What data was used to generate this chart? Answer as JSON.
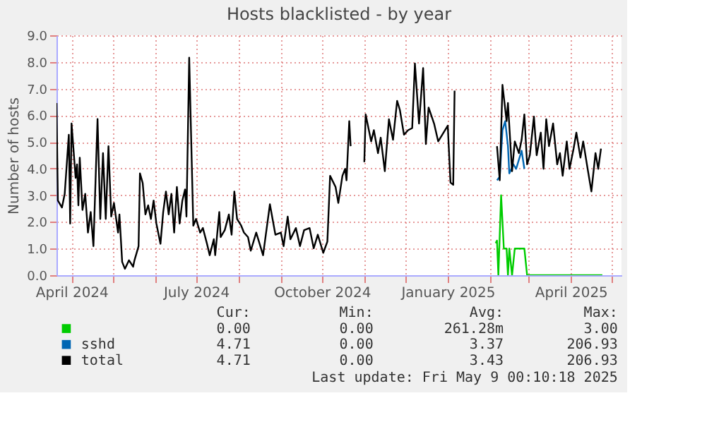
{
  "chart_data": {
    "type": "line",
    "title": "Hosts blacklisted - by year",
    "ylabel": "Number of hosts",
    "xlim": [
      "2024-03-21",
      "2025-05-08"
    ],
    "ylim": [
      0,
      9
    ],
    "yticks": [
      {
        "value": 0,
        "label": "0.0"
      },
      {
        "value": 1,
        "label": "1.0"
      },
      {
        "value": 2,
        "label": "2.0"
      },
      {
        "value": 3,
        "label": "3.0"
      },
      {
        "value": 4,
        "label": "4.0"
      },
      {
        "value": 5,
        "label": "5.0"
      },
      {
        "value": 6,
        "label": "6.0"
      },
      {
        "value": 7,
        "label": "7.0"
      },
      {
        "value": 8,
        "label": "8.0"
      },
      {
        "value": 9,
        "label": "9.0"
      }
    ],
    "xticks": [
      {
        "value": "2024-04-01",
        "label": "April 2024"
      },
      {
        "value": "2024-05-01",
        "label": null
      },
      {
        "value": "2024-06-01",
        "label": null
      },
      {
        "value": "2024-07-01",
        "label": "July 2024"
      },
      {
        "value": "2024-08-01",
        "label": null
      },
      {
        "value": "2024-09-01",
        "label": null
      },
      {
        "value": "2024-10-01",
        "label": "October 2024"
      },
      {
        "value": "2024-11-01",
        "label": null
      },
      {
        "value": "2024-12-01",
        "label": null
      },
      {
        "value": "2025-01-01",
        "label": "January 2025"
      },
      {
        "value": "2025-02-01",
        "label": null
      },
      {
        "value": "2025-03-01",
        "label": null
      },
      {
        "value": "2025-04-01",
        "label": "April 2025"
      },
      {
        "value": "2025-05-01",
        "label": null
      }
    ],
    "grid": true,
    "legend": "bottom",
    "line_style": "solid",
    "marker": "none",
    "series": [
      {
        "color": "#00cc00",
        "x": [
          "2025-02-05",
          "2025-02-06",
          "2025-02-07",
          "2025-02-09",
          "2025-02-11",
          "2025-02-13",
          "2025-02-14",
          "2025-02-15",
          "2025-02-17",
          "2025-02-19",
          "2025-02-26",
          "2025-02-28",
          "2025-04-24"
        ],
        "values": [
          1.2,
          1.3,
          0,
          3.0,
          1.0,
          1.0,
          0,
          1.0,
          0,
          1.0,
          1.0,
          0,
          0
        ]
      },
      {
        "name": "sshd",
        "color": "#0066b3",
        "x": [
          "2025-02-06",
          "2025-02-08",
          "2025-02-10",
          "2025-02-12",
          "2025-02-14",
          "2025-02-15",
          "2025-02-18",
          "2025-02-20",
          "2025-02-22",
          "2025-02-24",
          "2025-02-26"
        ],
        "values": [
          3.56,
          3.69,
          5.44,
          5.78,
          4.84,
          3.82,
          4.16,
          3.99,
          4.33,
          4.67,
          3.99
        ]
      },
      {
        "name": "total",
        "color": "#000000",
        "x": [
          "2024-03-21",
          "2024-03-22",
          "2024-03-25",
          "2024-03-27",
          "2024-03-30",
          "2024-03-31",
          "2024-04-01",
          "2024-04-04",
          "2024-04-05",
          "2024-04-06",
          "2024-04-07",
          "2024-04-09",
          "2024-04-11",
          "2024-04-13",
          "2024-04-15",
          "2024-04-17",
          "2024-04-20",
          "2024-04-22",
          "2024-04-24",
          "2024-04-26",
          "2024-04-28",
          "2024-04-30",
          "2024-05-02",
          "2024-05-05",
          "2024-05-06",
          "2024-05-08",
          "2024-05-10",
          "2024-05-13",
          "2024-05-16",
          "2024-05-17",
          "2024-05-20",
          "2024-05-21",
          "2024-05-23",
          "2024-05-25",
          "2024-05-27",
          "2024-05-29",
          "2024-05-31",
          "2024-06-02",
          "2024-06-05",
          "2024-06-07",
          "2024-06-09",
          "2024-06-11",
          "2024-06-13",
          "2024-06-15",
          "2024-06-17",
          "2024-06-19",
          "2024-06-21",
          "2024-06-23",
          "2024-06-24",
          "2024-06-26",
          "2024-06-29",
          "2024-07-01",
          "2024-07-04",
          "2024-07-06",
          "2024-07-09",
          "2024-07-11",
          "2024-07-14",
          "2024-07-15",
          "2024-07-18",
          "2024-07-19",
          "2024-07-22",
          "2024-07-25",
          "2024-07-27",
          "2024-07-29",
          "2024-07-31",
          "2024-08-03",
          "2024-08-05",
          "2024-08-08",
          "2024-08-10",
          "2024-08-14",
          "2024-08-19",
          "2024-08-24",
          "2024-08-28",
          "2024-09-01",
          "2024-09-03",
          "2024-09-06",
          "2024-09-08",
          "2024-09-12",
          "2024-09-15",
          "2024-09-18",
          "2024-09-22",
          "2024-09-25",
          "2024-09-28",
          "2024-10-02",
          "2024-10-05",
          "2024-10-07",
          "2024-10-11",
          "2024-10-13",
          "2024-10-16",
          "2024-10-18",
          "2024-10-19",
          "2024-10-21",
          "2024-10-22",
          "2024-10-27",
          "2024-11-01",
          "2024-11-02",
          "2024-11-06",
          "2024-11-08",
          "2024-11-11",
          "2024-11-13",
          "2024-11-16",
          "2024-11-19",
          "2024-11-22",
          "2024-11-25",
          "2024-11-27",
          "2024-11-30",
          "2024-12-03",
          "2024-12-06",
          "2024-12-08",
          "2024-12-11",
          "2024-12-14",
          "2024-12-16",
          "2024-12-18",
          "2024-12-22",
          "2024-12-25",
          "2024-12-28",
          "2025-01-01",
          "2025-01-03",
          "2025-01-05",
          "2025-01-06",
          "2025-01-20",
          "2025-02-06",
          "2025-02-08",
          "2025-02-10",
          "2025-02-13",
          "2025-02-14",
          "2025-02-17",
          "2025-02-19",
          "2025-02-22",
          "2025-02-24",
          "2025-02-26",
          "2025-02-28",
          "2025-03-02",
          "2025-03-05",
          "2025-03-07",
          "2025-03-10",
          "2025-03-12",
          "2025-03-14",
          "2025-03-16",
          "2025-03-19",
          "2025-03-22",
          "2025-03-24",
          "2025-03-26",
          "2025-03-29",
          "2025-03-31",
          "2025-04-03",
          "2025-04-05",
          "2025-04-08",
          "2025-04-10",
          "2025-04-13",
          "2025-04-16",
          "2025-04-19",
          "2025-04-21",
          "2025-04-23"
        ],
        "values": [
          6.46,
          2.8,
          2.54,
          3.05,
          5.27,
          1.94,
          5.69,
          3.65,
          4.16,
          2.62,
          4.41,
          2.45,
          3.05,
          1.6,
          2.37,
          1.09,
          5.86,
          2.11,
          4.58,
          2.11,
          4.84,
          2.2,
          2.71,
          1.6,
          2.28,
          0.5,
          0.24,
          0.56,
          0.32,
          0.56,
          1.09,
          3.82,
          3.46,
          2.28,
          2.62,
          2.11,
          2.8,
          1.94,
          1.18,
          2.37,
          3.14,
          2.28,
          3.05,
          1.6,
          3.31,
          1.94,
          2.8,
          3.22,
          2.2,
          8.16,
          1.86,
          2.11,
          1.6,
          1.77,
          1.18,
          0.75,
          1.35,
          0.75,
          2.37,
          1.43,
          1.69,
          2.28,
          1.52,
          3.14,
          2.11,
          1.86,
          1.6,
          1.43,
          0.92,
          1.6,
          0.75,
          2.66,
          1.52,
          1.6,
          1.09,
          2.2,
          1.35,
          1.77,
          1.09,
          1.69,
          1.77,
          1.01,
          1.52,
          0.84,
          1.26,
          3.73,
          3.31,
          2.71,
          3.73,
          3.99,
          3.56,
          5.78,
          4.84,
          null,
          4.24,
          6.03,
          5.02,
          5.44,
          4.58,
          5.16,
          3.9,
          5.85,
          5.08,
          6.54,
          6.2,
          5.27,
          5.44,
          5.52,
          7.94,
          5.69,
          7.77,
          4.92,
          6.29,
          5.69,
          5.02,
          5.27,
          5.61,
          3.48,
          3.39,
          6.92,
          null,
          4.84,
          3.56,
          7.14,
          5.78,
          6.46,
          3.9,
          5.02,
          4.58,
          5.08,
          6.03,
          4.16,
          4.5,
          5.95,
          4.5,
          5.35,
          3.99,
          5.85,
          4.84,
          5.69,
          4.16,
          4.58,
          3.73,
          5.02,
          3.99,
          4.75,
          5.35,
          4.41,
          5.02,
          4.07,
          3.14,
          4.58,
          3.99,
          4.75
        ]
      }
    ],
    "annotations": [
      "Cur:",
      "Min:",
      "Avg:",
      "Max:",
      "0.00",
      "0.00",
      "261.28m",
      "3.00",
      "4.71",
      "0.00",
      "3.37",
      "206.93",
      "4.71",
      "0.00",
      "3.43",
      "206.93",
      "Last update: Fri May  9 00:10:18 2025"
    ]
  }
}
